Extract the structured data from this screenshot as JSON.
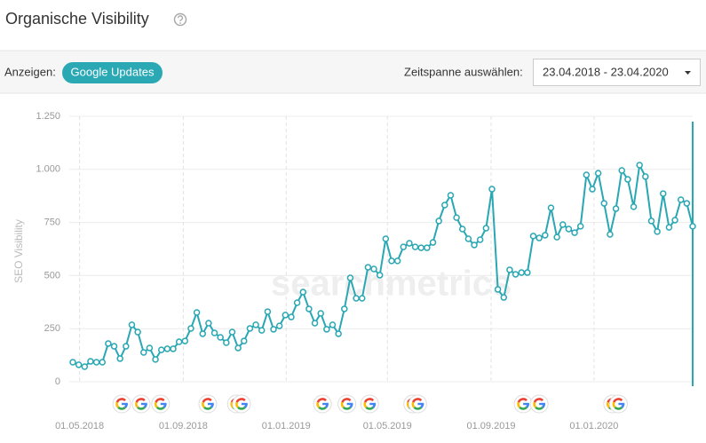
{
  "header": {
    "title": "Organische Visibility"
  },
  "toolbar": {
    "show_label": "Anzeigen:",
    "button": "Google Updates",
    "range_label": "Zeitspanne auswählen:",
    "range": "23.04.2018 - 23.04.2020"
  },
  "chart_data": {
    "type": "line",
    "ylabel": "SEO Visibility",
    "watermark": "searchmetrics",
    "color": "#29a7b3",
    "x": [
      0,
      7,
      14,
      21,
      28,
      35,
      42,
      49,
      56,
      63,
      70,
      77,
      84,
      91,
      98,
      105,
      112,
      119,
      126,
      133,
      140,
      147,
      154,
      161,
      168,
      175,
      182,
      189,
      196,
      203,
      210,
      217,
      224,
      231,
      238,
      245,
      252,
      259,
      266,
      273,
      280,
      287,
      294,
      301,
      308,
      315,
      322,
      329,
      336,
      343,
      350,
      357,
      364,
      371,
      378,
      385,
      392,
      399,
      406,
      413,
      420,
      427,
      434,
      441,
      448,
      455,
      462,
      469,
      476,
      483,
      490,
      497,
      504,
      511,
      518,
      525,
      532,
      539,
      546,
      553,
      560,
      567,
      574,
      581,
      588,
      595,
      602,
      609,
      616,
      623,
      630,
      637,
      644,
      651,
      658,
      665,
      672,
      679,
      686,
      693,
      700,
      707,
      714,
      721,
      728,
      735
    ],
    "values": [
      92,
      80,
      71,
      96,
      92,
      92,
      180,
      167,
      109,
      167,
      268,
      234,
      138,
      159,
      105,
      150,
      155,
      155,
      188,
      192,
      251,
      326,
      226,
      276,
      230,
      209,
      184,
      234,
      159,
      192,
      251,
      268,
      242,
      330,
      247,
      263,
      314,
      305,
      372,
      422,
      343,
      276,
      322,
      247,
      268,
      226,
      343,
      489,
      393,
      393,
      539,
      531,
      502,
      673,
      569,
      569,
      635,
      652,
      635,
      631,
      631,
      656,
      757,
      832,
      878,
      773,
      719,
      673,
      644,
      669,
      723,
      907,
      435,
      397,
      527,
      506,
      514,
      514,
      686,
      677,
      690,
      819,
      681,
      740,
      719,
      702,
      732,
      974,
      907,
      982,
      840,
      694,
      815,
      995,
      953,
      824,
      1020,
      966,
      757,
      707,
      886,
      727,
      761,
      857,
      840,
      732
    ],
    "xlim": [
      0,
      735
    ],
    "xticks": [
      {
        "value": 8,
        "label": "01.05.2018"
      },
      {
        "value": 131,
        "label": "01.09.2018"
      },
      {
        "value": 253,
        "label": "01.01.2019"
      },
      {
        "value": 373,
        "label": "01.05.2019"
      },
      {
        "value": 496,
        "label": "01.09.2019"
      },
      {
        "value": 618,
        "label": "01.01.2020"
      }
    ],
    "ylim": [
      0,
      1250
    ],
    "yticks": [
      0,
      250,
      500,
      750,
      {
        "value": 1000,
        "label": "1.000"
      },
      {
        "value": 1250,
        "label": "1.250"
      }
    ],
    "grid": true,
    "google_updates": [
      58,
      81,
      104,
      160,
      194,
      200,
      296,
      325,
      352,
      403,
      409,
      534,
      553,
      640,
      647
    ]
  }
}
